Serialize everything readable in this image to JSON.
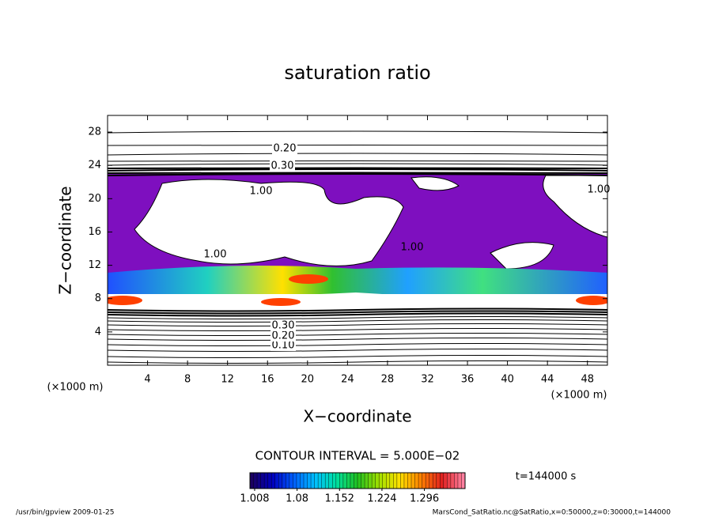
{
  "chart_data": {
    "type": "contour",
    "title": "saturation ratio",
    "xlabel": "X−coordinate",
    "ylabel": "Z−coordinate",
    "axis_unit": "(×1000 m)",
    "xlim": [
      0,
      50
    ],
    "ylim": [
      0,
      30
    ],
    "xticks": [
      4,
      8,
      12,
      16,
      20,
      24,
      28,
      32,
      36,
      40,
      44,
      48
    ],
    "yticks": [
      4,
      8,
      12,
      16,
      20,
      24,
      28
    ],
    "contour_labels": [
      "0.20",
      "0.30",
      "1.00",
      "1.00",
      "1.00",
      "1.00",
      "0.10",
      "0.20",
      "0.30"
    ],
    "fill_color": "#7e0fbf",
    "contour_interval": "CONTOUR INTERVAL = 5.000E−02",
    "time_label": "t=144000 s",
    "colorbar": {
      "clim": [
        1.0,
        1.365
      ],
      "ticks": [
        1.008,
        1.08,
        1.152,
        1.224,
        1.296
      ],
      "colors": [
        "#1a0060",
        "#0000c0",
        "#0060ff",
        "#00c0ff",
        "#00e0a0",
        "#20c020",
        "#a0e000",
        "#ffe000",
        "#ff8000",
        "#e02020",
        "#ff80a0"
      ]
    },
    "footer_left": "/usr/bin/gpview   2009-01-25",
    "footer_right": "MarsCond_SatRatio.nc@SatRatio,x=0:50000,z=0:30000,t=144000"
  }
}
